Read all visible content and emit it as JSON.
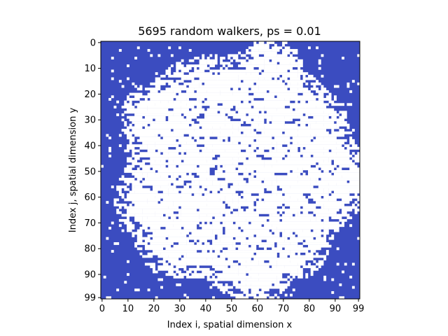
{
  "chart_data": {
    "type": "heatmap",
    "title": "5695 random walkers, ps = 0.01",
    "xlabel": "Index i, spatial dimension x",
    "ylabel": "Index j, spatial dimension y",
    "grid_size": [
      100,
      100
    ],
    "x_range": [
      0,
      99
    ],
    "y_range": [
      0,
      99
    ],
    "x_ticks": [
      0,
      10,
      20,
      30,
      40,
      50,
      60,
      70,
      80,
      90,
      99
    ],
    "y_ticks": [
      0,
      10,
      20,
      30,
      40,
      50,
      60,
      70,
      80,
      90,
      99
    ],
    "y_axis_inverted": true,
    "walkers": 5695,
    "ps": 0.01,
    "colors": {
      "occupied": "#ffffff",
      "empty": "#3b4cc0"
    }
  }
}
